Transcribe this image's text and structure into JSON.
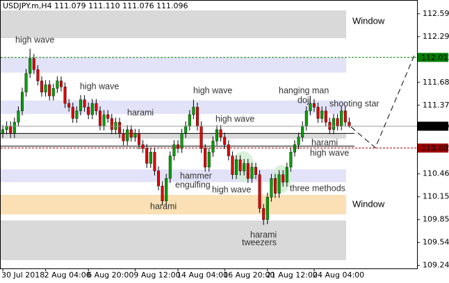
{
  "chart_data": {
    "type": "candlestick",
    "title": "USDJPY.m,H4  111.079 111.110 111.076 111.096",
    "categories": [
      "30 Jul 2018",
      null,
      null,
      null,
      null,
      null,
      null,
      null,
      null,
      null,
      null,
      "2 Aug 04:00",
      null,
      null,
      null,
      null,
      null,
      null,
      null,
      null,
      null,
      null,
      "6 Aug 20:00",
      null,
      null,
      null,
      null,
      null,
      null,
      null,
      null,
      null,
      null,
      null,
      "9 Aug 12:00",
      null,
      null,
      null,
      null,
      null,
      null,
      null,
      null,
      null,
      null,
      "14 Aug 04:00",
      null,
      null,
      null,
      null,
      null,
      null,
      null,
      null,
      null,
      null,
      null,
      "16 Aug 20:00",
      null,
      null,
      null,
      null,
      null,
      null,
      null,
      null,
      null,
      null,
      "21 Aug 12:00",
      null,
      null,
      null,
      null,
      null,
      null,
      null,
      null,
      null,
      null,
      null,
      "24 Aug 04:00",
      null,
      null,
      null,
      null,
      null,
      null,
      null,
      null,
      null
    ],
    "open": [
      111.0,
      111.05,
      111.1,
      111.0,
      111.15,
      111.3,
      111.55,
      111.8,
      112.0,
      111.85,
      111.7,
      111.55,
      111.65,
      111.5,
      111.6,
      111.7,
      111.62,
      111.4,
      111.35,
      111.2,
      111.3,
      111.45,
      111.35,
      111.25,
      111.4,
      111.3,
      111.1,
      111.25,
      111.2,
      111.05,
      111.15,
      111.0,
      110.9,
      111.05,
      110.95,
      111.0,
      110.85,
      110.8,
      110.6,
      110.75,
      110.5,
      110.3,
      110.1,
      110.4,
      110.7,
      110.85,
      110.8,
      111.0,
      111.1,
      111.25,
      111.35,
      111.1,
      110.8,
      110.55,
      110.75,
      110.9,
      111.05,
      110.95,
      110.85,
      110.7,
      110.45,
      110.65,
      110.5,
      110.6,
      110.4,
      110.55,
      110.45,
      110.0,
      109.85,
      110.15,
      110.4,
      110.2,
      110.45,
      110.35,
      110.55,
      110.75,
      110.85,
      110.95,
      111.1,
      111.3,
      111.4,
      111.35,
      111.2,
      111.3,
      111.15,
      111.05,
      111.2,
      111.1,
      111.3,
      111.15
    ],
    "high": [
      111.11,
      111.16,
      111.16,
      111.21,
      111.36,
      111.61,
      111.86,
      112.13,
      112.06,
      111.91,
      111.76,
      111.71,
      111.71,
      111.66,
      111.76,
      111.76,
      111.68,
      111.46,
      111.41,
      111.36,
      111.51,
      111.51,
      111.41,
      111.46,
      111.46,
      111.36,
      111.31,
      111.31,
      111.26,
      111.21,
      111.21,
      111.06,
      111.11,
      111.11,
      111.06,
      111.06,
      110.91,
      110.86,
      110.81,
      110.81,
      110.56,
      110.36,
      110.46,
      110.76,
      110.91,
      110.91,
      111.06,
      111.16,
      111.31,
      111.45,
      111.41,
      111.16,
      110.86,
      110.81,
      110.96,
      111.11,
      111.11,
      111.01,
      110.91,
      110.76,
      110.71,
      110.71,
      110.66,
      110.66,
      110.61,
      110.61,
      110.51,
      110.06,
      110.21,
      110.46,
      110.46,
      110.51,
      110.51,
      110.61,
      110.81,
      110.91,
      111.01,
      111.16,
      111.36,
      111.5,
      111.46,
      111.41,
      111.36,
      111.36,
      111.21,
      111.26,
      111.26,
      111.36,
      111.36,
      111.21
    ],
    "low": [
      110.94,
      110.99,
      110.94,
      110.94,
      111.09,
      111.24,
      111.49,
      111.74,
      111.79,
      111.64,
      111.49,
      111.49,
      111.44,
      111.44,
      111.54,
      111.56,
      111.34,
      111.29,
      111.14,
      111.14,
      111.24,
      111.29,
      111.19,
      111.19,
      111.24,
      111.04,
      111.04,
      111.14,
      110.99,
      110.99,
      110.94,
      110.84,
      110.84,
      110.89,
      110.89,
      110.79,
      110.74,
      110.54,
      110.54,
      110.44,
      110.24,
      110.04,
      110.04,
      110.34,
      110.64,
      110.74,
      110.74,
      110.94,
      111.04,
      111.19,
      111.04,
      110.74,
      110.49,
      110.49,
      110.69,
      110.84,
      110.89,
      110.79,
      110.64,
      110.39,
      110.39,
      110.44,
      110.44,
      110.34,
      110.34,
      110.39,
      109.94,
      109.78,
      109.79,
      110.09,
      110.14,
      110.14,
      110.29,
      110.29,
      110.49,
      110.69,
      110.79,
      110.89,
      111.04,
      111.24,
      111.29,
      111.14,
      111.14,
      111.09,
      110.99,
      110.99,
      111.04,
      111.04,
      111.09,
      111.076
    ],
    "close": [
      111.05,
      111.1,
      111.0,
      111.15,
      111.3,
      111.55,
      111.8,
      112.0,
      111.85,
      111.7,
      111.55,
      111.65,
      111.5,
      111.6,
      111.7,
      111.62,
      111.4,
      111.35,
      111.2,
      111.3,
      111.45,
      111.35,
      111.25,
      111.4,
      111.3,
      111.1,
      111.25,
      111.2,
      111.05,
      111.15,
      111.0,
      110.9,
      111.05,
      110.95,
      111.0,
      110.85,
      110.8,
      110.6,
      110.75,
      110.5,
      110.3,
      110.1,
      110.4,
      110.7,
      110.85,
      110.8,
      111.0,
      111.1,
      111.25,
      111.35,
      111.1,
      110.8,
      110.55,
      110.75,
      110.9,
      111.05,
      110.95,
      110.85,
      110.7,
      110.45,
      110.65,
      110.5,
      110.6,
      110.4,
      110.55,
      110.45,
      110.0,
      109.85,
      110.15,
      110.4,
      110.2,
      110.45,
      110.35,
      110.55,
      110.75,
      110.85,
      110.95,
      111.1,
      111.3,
      111.4,
      111.35,
      111.2,
      111.3,
      111.15,
      111.05,
      111.2,
      111.1,
      111.3,
      111.15,
      111.096
    ],
    "up_color": "#00a000",
    "down_color": "#e00000",
    "wick_color": "#000000",
    "ylim": [
      109.2,
      112.76
    ],
    "yticks": [
      112.595,
      112.29,
      111.68,
      111.375,
      {
        "value": 110.46,
        "label": "110.460"
      },
      110.155,
      {
        "value": 109.85,
        "label": "109.850"
      },
      109.545,
      {
        "value": 109.24,
        "label": "109.240"
      }
    ],
    "zones": [
      {
        "from": 112.27,
        "to": 112.64,
        "color": "#d9d9d9",
        "label": "Window",
        "label_color": "#8a9ab5"
      },
      {
        "from": 111.81,
        "to": 112.01,
        "color": "#e2e2f8"
      },
      {
        "from": 111.26,
        "to": 111.44,
        "color": "#e2e2f8"
      },
      {
        "from": 110.93,
        "to": 111.0,
        "color": "#d9d9d9"
      },
      {
        "from": 110.35,
        "to": 110.52,
        "color": "#e2e2f8"
      },
      {
        "from": 109.92,
        "to": 110.18,
        "color": "#fae0b4",
        "label": "Window",
        "label_color": "#e0a020"
      },
      {
        "from": 109.31,
        "to": 109.84,
        "color": "#d9d9d9"
      }
    ],
    "lines": [
      {
        "value": 111.0,
        "color": "#000000"
      },
      {
        "value": 110.83,
        "color": "#000000"
      }
    ],
    "price_levels": [
      {
        "value": 112.013,
        "color": "#008000",
        "dashed": true
      },
      {
        "value": 111.096,
        "color": "#000000",
        "dashed": false
      },
      {
        "value": 110.805,
        "color": "#a00000",
        "dashed": true
      }
    ],
    "annotations": [
      "high wave",
      "high wave",
      "harami",
      "high wave",
      "high wave",
      "hammer",
      "engulfing",
      "high wave",
      "harami",
      "harami",
      "tweezers",
      "three methods",
      "hanging man",
      "doji",
      "shooting star",
      "harami",
      "high wave"
    ]
  }
}
